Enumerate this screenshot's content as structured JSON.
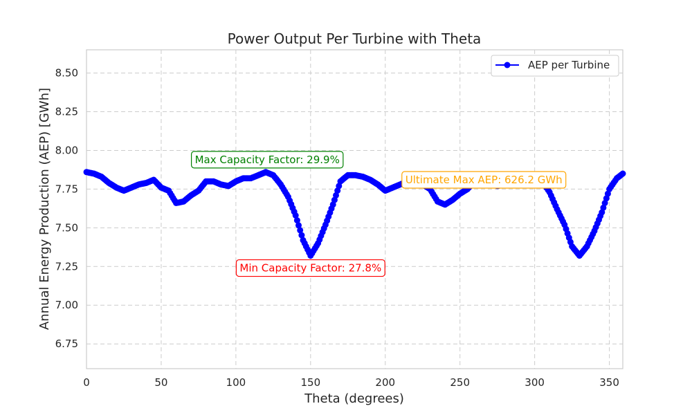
{
  "chart_data": {
    "type": "line",
    "title": "Power Output Per Turbine with Theta",
    "xlabel": "Theta (degrees)",
    "ylabel": "Annual Energy Production (AEP) [GWh]",
    "xlim": [
      0,
      359
    ],
    "ylim": [
      6.59,
      8.65
    ],
    "xticks": [
      0,
      50,
      100,
      150,
      200,
      250,
      300,
      350
    ],
    "yticks": [
      6.75,
      7.0,
      7.25,
      7.5,
      7.75,
      8.0,
      8.25,
      8.5
    ],
    "ytick_labels": [
      "6.75",
      "7.00",
      "7.25",
      "7.50",
      "7.75",
      "8.00",
      "8.25",
      "8.50"
    ],
    "grid": true,
    "legend_position": "top-right",
    "series": [
      {
        "name": "AEP per Turbine",
        "color": "#0000ff",
        "marker": "circle",
        "x": [
          0,
          5,
          10,
          15,
          20,
          25,
          30,
          35,
          40,
          45,
          50,
          55,
          60,
          65,
          70,
          75,
          80,
          85,
          90,
          95,
          100,
          105,
          110,
          115,
          120,
          125,
          130,
          135,
          140,
          145,
          150,
          155,
          160,
          165,
          170,
          175,
          180,
          185,
          190,
          195,
          200,
          205,
          210,
          215,
          220,
          225,
          230,
          235,
          240,
          245,
          250,
          255,
          260,
          265,
          270,
          275,
          280,
          285,
          290,
          295,
          300,
          305,
          310,
          315,
          320,
          325,
          330,
          335,
          340,
          345,
          350,
          355,
          359
        ],
        "y": [
          7.86,
          7.85,
          7.83,
          7.79,
          7.76,
          7.74,
          7.76,
          7.78,
          7.79,
          7.81,
          7.76,
          7.74,
          7.66,
          7.67,
          7.71,
          7.74,
          7.8,
          7.8,
          7.78,
          7.77,
          7.8,
          7.82,
          7.82,
          7.84,
          7.86,
          7.84,
          7.78,
          7.7,
          7.58,
          7.42,
          7.32,
          7.4,
          7.52,
          7.65,
          7.8,
          7.84,
          7.84,
          7.83,
          7.81,
          7.78,
          7.74,
          7.76,
          7.78,
          7.8,
          7.78,
          7.78,
          7.75,
          7.67,
          7.65,
          7.68,
          7.72,
          7.75,
          7.8,
          7.8,
          7.79,
          7.77,
          7.78,
          7.81,
          7.82,
          7.82,
          7.84,
          7.8,
          7.73,
          7.62,
          7.52,
          7.38,
          7.32,
          7.38,
          7.48,
          7.6,
          7.75,
          7.82,
          7.85
        ]
      }
    ],
    "annotations": [
      {
        "text": "Max Capacity Factor: 29.9%",
        "x": 121,
        "y": 7.94,
        "color": "#008000"
      },
      {
        "text": "Min Capacity Factor: 27.8%",
        "x": 150,
        "y": 7.24,
        "color": "#ff0000"
      },
      {
        "text": "Ultimate Max AEP: 626.2 GWh",
        "x": 266,
        "y": 7.81,
        "color": "#ffa500"
      }
    ]
  }
}
